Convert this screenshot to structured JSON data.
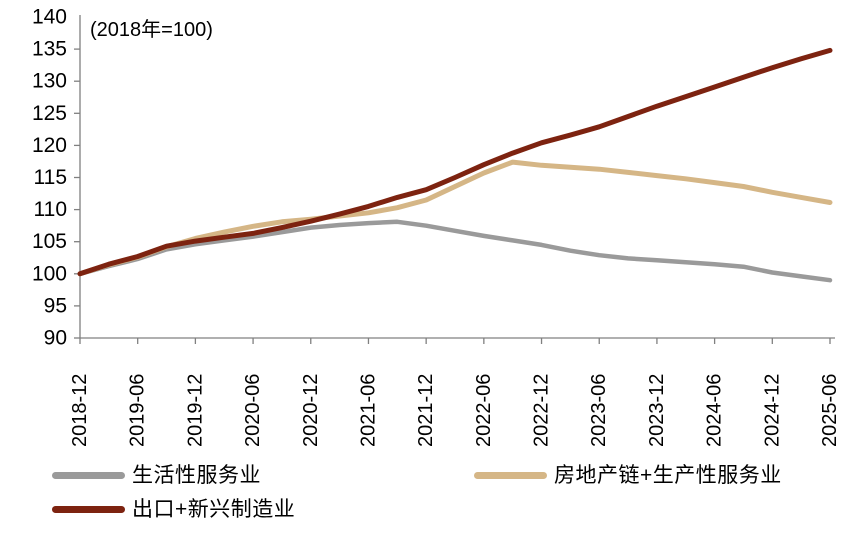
{
  "note": "(2018年=100)",
  "colors": {
    "consumer_services": "#9a9a9a",
    "real_estate_chain": "#d5b686",
    "exports_manufacturing": "#7d2310",
    "axis": "#808080",
    "text": "#000000"
  },
  "legend": {
    "items": [
      {
        "label": "生活性服务业",
        "color": "#9a9a9a"
      },
      {
        "label": "房地产链+生产性服务业",
        "color": "#d5b686"
      },
      {
        "label": "出口+新兴制造业",
        "color": "#7d2310"
      }
    ]
  },
  "chart_data": {
    "type": "line",
    "title": "",
    "note": "(2018年=100)",
    "xlabel": "",
    "ylabel": "",
    "ylim": [
      90,
      140
    ],
    "ytick_step": 5,
    "grid": false,
    "legend_position": "bottom",
    "x": [
      "2018-12",
      "2019-03",
      "2019-06",
      "2019-09",
      "2019-12",
      "2020-03",
      "2020-06",
      "2020-09",
      "2020-12",
      "2021-03",
      "2021-06",
      "2021-09",
      "2021-12",
      "2022-03",
      "2022-06",
      "2022-09",
      "2022-12",
      "2023-03",
      "2023-06",
      "2023-09",
      "2023-12",
      "2024-03",
      "2024-06",
      "2024-09",
      "2024-12",
      "2025-03",
      "2025-06"
    ],
    "x_tick_labels": [
      "2018-12",
      "2019-06",
      "2019-12",
      "2020-06",
      "2020-12",
      "2021-06",
      "2021-12",
      "2022-06",
      "2022-12",
      "2023-06",
      "2023-12",
      "2024-06",
      "2024-12",
      "2025-06"
    ],
    "series": [
      {
        "name": "生活性服务业",
        "color": "#9a9a9a",
        "width": 4.5,
        "values": [
          100,
          101.2,
          102.3,
          103.8,
          104.6,
          105.2,
          105.8,
          106.5,
          107.2,
          107.6,
          107.9,
          108.1,
          107.5,
          106.7,
          105.9,
          105.2,
          104.5,
          103.6,
          102.9,
          102.4,
          102.1,
          101.8,
          101.5,
          101.1,
          100.2,
          99.6,
          99.0
        ]
      },
      {
        "name": "房地产链+生产性服务业",
        "color": "#d5b686",
        "width": 5,
        "values": [
          100,
          101.4,
          102.6,
          104.2,
          105.5,
          106.5,
          107.4,
          108.1,
          108.5,
          109.0,
          109.5,
          110.3,
          111.5,
          113.6,
          115.7,
          117.4,
          116.9,
          116.6,
          116.3,
          115.8,
          115.3,
          114.8,
          114.2,
          113.6,
          112.7,
          111.9,
          111.1
        ]
      },
      {
        "name": "出口+新兴制造业",
        "color": "#7d2310",
        "width": 5,
        "values": [
          100,
          101.5,
          102.7,
          104.3,
          105.1,
          105.7,
          106.3,
          107.2,
          108.2,
          109.3,
          110.5,
          111.9,
          113.1,
          115.0,
          117.0,
          118.8,
          120.4,
          121.6,
          122.9,
          124.5,
          126.1,
          127.6,
          129.1,
          130.6,
          132.1,
          133.5,
          134.8
        ]
      }
    ]
  }
}
